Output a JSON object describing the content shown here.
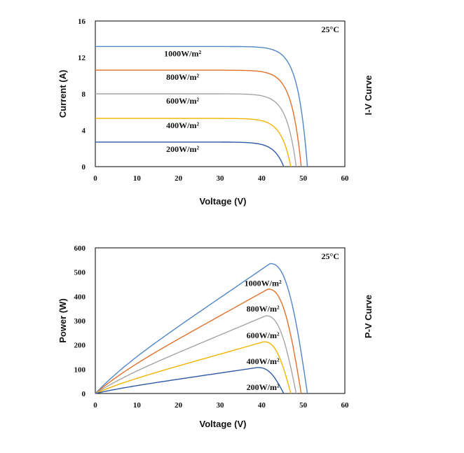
{
  "chart_data": [
    {
      "type": "line",
      "side_title": "I-V Curve",
      "temperature_label": "25°C",
      "xlabel": "Voltage (V)",
      "ylabel": "Current (A)",
      "xlim": [
        0,
        60
      ],
      "ylim": [
        0,
        16
      ],
      "xticks": [
        "0",
        "10",
        "20",
        "30",
        "40",
        "50",
        "60"
      ],
      "yticks": [
        "0",
        "4",
        "8",
        "12",
        "16"
      ],
      "grid": false,
      "series": [
        {
          "name": "1000W/m²",
          "color": "#4f86c6",
          "isc": 13.2,
          "voc": 51.0
        },
        {
          "name": "800W/m²",
          "color": "#e0702a",
          "isc": 10.6,
          "voc": 49.5
        },
        {
          "name": "600W/m²",
          "color": "#a5a5a5",
          "isc": 8.0,
          "voc": 48.3
        },
        {
          "name": "400W/m²",
          "color": "#f4b400",
          "isc": 5.3,
          "voc": 47.0
        },
        {
          "name": "200W/m²",
          "color": "#2f5aa8",
          "isc": 2.7,
          "voc": 45.3
        }
      ]
    },
    {
      "type": "line",
      "side_title": "P-V Curve",
      "temperature_label": "25°C",
      "xlabel": "Voltage (V)",
      "ylabel": "Power (W)",
      "xlim": [
        0,
        60
      ],
      "ylim": [
        0,
        600
      ],
      "xticks": [
        "0",
        "10",
        "20",
        "30",
        "40",
        "50",
        "60"
      ],
      "yticks": [
        "0",
        "100",
        "200",
        "300",
        "400",
        "500",
        "600"
      ],
      "grid": false,
      "series": [
        {
          "name": "1000W/m²",
          "color": "#4f86c6",
          "vmp": 42.0,
          "pmax": 535,
          "voc": 51.0
        },
        {
          "name": "800W/m²",
          "color": "#e0702a",
          "vmp": 41.5,
          "pmax": 430,
          "voc": 49.5
        },
        {
          "name": "600W/m²",
          "color": "#a5a5a5",
          "vmp": 41.0,
          "pmax": 320,
          "voc": 48.3
        },
        {
          "name": "400W/m²",
          "color": "#f4b400",
          "vmp": 40.5,
          "pmax": 213,
          "voc": 47.0
        },
        {
          "name": "200W/m²",
          "color": "#2f5aa8",
          "vmp": 39.0,
          "pmax": 107,
          "voc": 45.3
        }
      ]
    }
  ]
}
